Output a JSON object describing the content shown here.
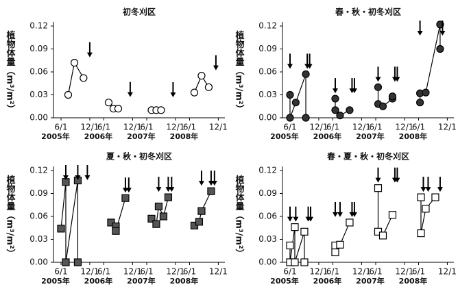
{
  "chart_data": [
    {
      "type": "line",
      "title": "初冬刈区",
      "y_label": "植物体量（m³/m²）",
      "marker": "circle",
      "color": "#ffffff",
      "ylim": [
        0,
        0.12
      ],
      "yticks": [
        {
          "value": 0,
          "label": "0.00"
        },
        {
          "value": 0.03,
          "label": "0.03"
        },
        {
          "value": 0.06,
          "label": "0.06"
        },
        {
          "value": 0.09,
          "label": "0.09"
        },
        {
          "value": 0.12,
          "label": "0.12"
        }
      ],
      "xlim": [
        5,
        12.8
      ],
      "xticks": [
        {
          "value": 6,
          "label": "6/1"
        },
        {
          "value": 12,
          "label": "12/1"
        }
      ],
      "groups": [
        {
          "label": "2005年",
          "x": [
            7.5,
            8.8,
            10.7
          ],
          "values": [
            0.03,
            0.072,
            0.052
          ],
          "mowing": [
            12
          ]
        },
        {
          "label": "2006年",
          "x": [
            7,
            8,
            9
          ],
          "values": [
            0.02,
            0.012,
            0.012
          ],
          "mowing": [
            11.5
          ]
        },
        {
          "label": "2007年",
          "x": [
            7,
            8,
            9
          ],
          "values": [
            0.01,
            0.01,
            0.01
          ],
          "mowing": [
            11.5
          ]
        },
        {
          "label": "2008年",
          "x": [
            7,
            8.5,
            10
          ],
          "values": [
            0.033,
            0.055,
            0.04
          ],
          "mowing": [
            11.5
          ]
        }
      ]
    },
    {
      "type": "line",
      "title": "春・秋・初冬刈区",
      "y_label": "植物体量（m³/m²）",
      "marker": "circle",
      "color": "#333333",
      "ylim": [
        0,
        0.12
      ],
      "yticks": [
        {
          "value": 0,
          "label": "0.00"
        },
        {
          "value": 0.03,
          "label": "0.03"
        },
        {
          "value": 0.06,
          "label": "0.06"
        },
        {
          "value": 0.09,
          "label": "0.09"
        },
        {
          "value": 0.12,
          "label": "0.12"
        }
      ],
      "xlim": [
        5,
        12.8
      ],
      "xticks": [
        {
          "value": 6,
          "label": "6/1"
        },
        {
          "value": 12,
          "label": "12/1"
        }
      ],
      "groups": [
        {
          "label": "2005年",
          "x": [
            6,
            6,
            7.2,
            9.3,
            9.3
          ],
          "values": [
            0.03,
            0,
            0.02,
            0.057,
            0
          ],
          "mowing": [
            6,
            9.6,
            10.1
          ]
        },
        {
          "label": "2006年",
          "x": [
            6.5,
            6.5,
            7.5,
            9.5
          ],
          "values": [
            0.025,
            0.01,
            0.003,
            0.01
          ],
          "mowing": [
            6.5,
            10,
            10.5
          ]
        },
        {
          "label": "2007年",
          "x": [
            6.5,
            6.5,
            7.5,
            9.5,
            9.5
          ],
          "values": [
            0.04,
            0.018,
            0.015,
            0.025,
            0.028
          ],
          "mowing": [
            6.5,
            10,
            10.5
          ]
        },
        {
          "label": "2008年",
          "x": [
            6.3,
            6.3,
            7.5,
            10.5,
            10.5
          ],
          "values": [
            0.02,
            0.032,
            0.033,
            0.122,
            0.09
          ],
          "mowing": [
            6.3,
            11
          ]
        }
      ]
    },
    {
      "type": "line",
      "title": "夏・秋・初冬刈区",
      "y_label": "植物体量（m³/m²）",
      "marker": "square",
      "color": "#555555",
      "ylim": [
        0,
        0.12
      ],
      "yticks": [
        {
          "value": 0,
          "label": "0.00"
        },
        {
          "value": 0.03,
          "label": "0.03"
        },
        {
          "value": 0.06,
          "label": "0.06"
        },
        {
          "value": 0.09,
          "label": "0.09"
        },
        {
          "value": 0.12,
          "label": "0.12"
        }
      ],
      "xlim": [
        5,
        12.8
      ],
      "xticks": [
        {
          "value": 6,
          "label": "6/1"
        },
        {
          "value": 12,
          "label": "12/1"
        }
      ],
      "groups": [
        {
          "label": "2005年",
          "x": [
            6,
            7,
            7,
            9.5,
            9.5
          ],
          "values": [
            0.044,
            0.105,
            0,
            0.107,
            0
          ],
          "mowing": [
            7,
            9.5,
            11.5
          ]
        },
        {
          "label": "2006年",
          "x": [
            7.5,
            8.5,
            8.5,
            10.5
          ],
          "values": [
            0.052,
            0.047,
            0.041,
            0.084
          ],
          "mowing": [
            10.5,
            11.2
          ]
        },
        {
          "label": "2007年",
          "x": [
            7,
            8,
            8.5,
            9.5,
            10.5
          ],
          "values": [
            0.057,
            0.05,
            0.073,
            0.06,
            0.085
          ],
          "mowing": [
            8.5,
            10.5,
            11.2
          ]
        },
        {
          "label": "2008年",
          "x": [
            7,
            8,
            8.5,
            10.5
          ],
          "values": [
            0.048,
            0.053,
            0.067,
            0.093
          ],
          "mowing": [
            8.5,
            10.5,
            11.2
          ]
        }
      ]
    },
    {
      "type": "line",
      "title": "春・夏・秋・初冬刈区",
      "y_label": "植物体量（m³/m²）",
      "marker": "square",
      "color": "#ffffff",
      "ylim": [
        0,
        0.12
      ],
      "yticks": [
        {
          "value": 0,
          "label": "0.00"
        },
        {
          "value": 0.03,
          "label": "0.03"
        },
        {
          "value": 0.06,
          "label": "0.06"
        },
        {
          "value": 0.09,
          "label": "0.09"
        },
        {
          "value": 0.12,
          "label": "0.12"
        }
      ],
      "xlim": [
        5,
        12.8
      ],
      "xticks": [
        {
          "value": 6,
          "label": "6/1"
        },
        {
          "value": 12,
          "label": "12/1"
        }
      ],
      "groups": [
        {
          "label": "2005年",
          "x": [
            6,
            6,
            7,
            7,
            9,
            9
          ],
          "values": [
            0.022,
            0,
            0.046,
            0,
            0.04,
            0
          ],
          "mowing": [
            6,
            7.2,
            9.8,
            10.3
          ]
        },
        {
          "label": "2006年",
          "x": [
            6.5,
            6.5,
            7.5,
            9.5
          ],
          "values": [
            0.022,
            0.013,
            0.023,
            0.052
          ],
          "mowing": [
            6.5,
            7.5,
            10,
            10.5
          ]
        },
        {
          "label": "2007年",
          "x": [
            6.5,
            6.5,
            7.5,
            9.5
          ],
          "values": [
            0.097,
            0.04,
            0.035,
            0.062
          ],
          "mowing": [
            6.5,
            10,
            10.5
          ]
        },
        {
          "label": "2008年",
          "x": [
            6.5,
            6.5,
            7.5,
            9.5
          ],
          "values": [
            0.085,
            0.038,
            0.07,
            0.085
          ],
          "mowing": [
            7,
            8,
            10.5
          ]
        }
      ]
    }
  ]
}
